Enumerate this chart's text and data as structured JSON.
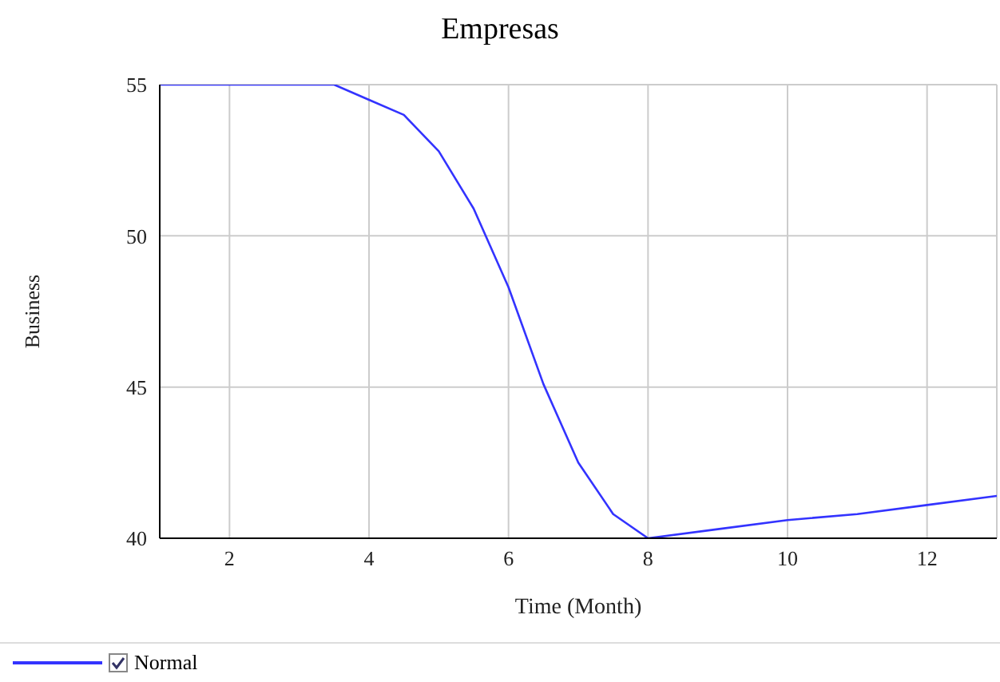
{
  "chart_data": {
    "type": "line",
    "title": "Empresas",
    "xlabel": "Time (Month)",
    "ylabel": "Business",
    "x": [
      1,
      2,
      3,
      3.5,
      4,
      4.5,
      5,
      5.5,
      6,
      6.5,
      7,
      7.5,
      8,
      9,
      10,
      11,
      12,
      13
    ],
    "series": [
      {
        "name": "Normal",
        "color": "#3333ff",
        "values": [
          55,
          55,
          55,
          55,
          54.5,
          54,
          52.8,
          50.9,
          48.3,
          45.1,
          42.5,
          40.8,
          40,
          40.3,
          40.6,
          40.8,
          41.1,
          41.4
        ]
      }
    ],
    "xlim": [
      1,
      13
    ],
    "xticks": [
      2,
      4,
      6,
      8,
      10,
      12
    ],
    "ylim": [
      40,
      55
    ],
    "yticks": [
      40,
      45,
      50,
      55
    ],
    "grid": true,
    "legend": "bottom left",
    "marker": "none",
    "line_style": "solid"
  }
}
